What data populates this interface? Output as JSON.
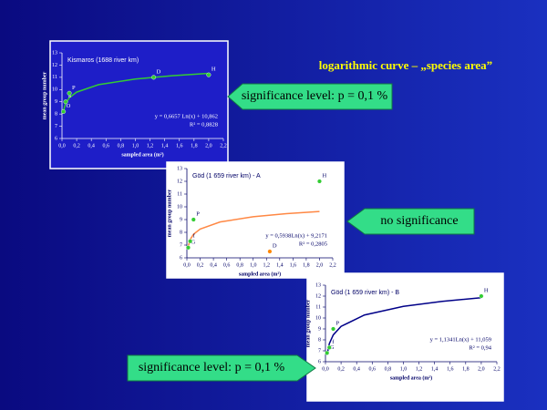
{
  "slide_title": "logarithmic curve – „species area”",
  "callouts": [
    "significance level: p = 0,1 %",
    "no significance",
    "significance level: p = 0,1 %"
  ],
  "chart_data": [
    {
      "type": "scatter",
      "title": "Kismaros (1688 river km)",
      "x_label": "sampled area (m²)",
      "y_label": "mean group number",
      "xlim": [
        0,
        2.2
      ],
      "xticks": [
        {
          "value": 0,
          "label": "0,0"
        },
        {
          "value": 0.2,
          "label": "0,2"
        },
        {
          "value": 0.4,
          "label": "0,4"
        },
        {
          "value": 0.6,
          "label": "0,6"
        },
        {
          "value": 0.8,
          "label": "0,8"
        },
        {
          "value": 1,
          "label": "1,0"
        },
        {
          "value": 1.2,
          "label": "1,2"
        },
        {
          "value": 1.4,
          "label": "1,4"
        },
        {
          "value": 1.6,
          "label": "1,6"
        },
        {
          "value": 1.8,
          "label": "1,8"
        },
        {
          "value": 2,
          "label": "2,0"
        },
        {
          "value": 2.2,
          "label": "2,2"
        }
      ],
      "ylim": [
        6,
        13
      ],
      "yticks": [
        6,
        7,
        8,
        9,
        10,
        11,
        12,
        13
      ],
      "background": "#1e1ec8",
      "text_color": "#ffffff",
      "points": {
        "x": [
          0.02,
          0.05,
          0.1,
          1.25,
          2.0
        ],
        "values": [
          8.2,
          9.0,
          9.7,
          11.0,
          11.2
        ],
        "labels": [
          "O",
          "a",
          "P",
          "D",
          "H"
        ],
        "colors": [
          "#33cc33",
          "#33cc33",
          "#33cc33",
          "#33cc33",
          "#33cc33"
        ]
      },
      "trendline": {
        "color": "#33cc33",
        "x": [
          0.02,
          0.05,
          0.1,
          0.2,
          0.5,
          1.0,
          1.5,
          2.0
        ],
        "values": [
          8.26,
          8.87,
          9.33,
          9.79,
          10.4,
          10.86,
          11.13,
          11.32
        ]
      },
      "equation": "y = 0,6657 Ln(x) + 10,862",
      "r_squared": "R² = 0,8828"
    },
    {
      "type": "scatter",
      "title": "Göd (1 659 river km) - A",
      "x_label": "sampled area (m²)",
      "y_label": "mean group number",
      "xlim": [
        0,
        2.2
      ],
      "xticks": [
        {
          "value": 0,
          "label": "0,0"
        },
        {
          "value": 0.2,
          "label": "0,2"
        },
        {
          "value": 0.4,
          "label": "0,4"
        },
        {
          "value": 0.6,
          "label": "0,6"
        },
        {
          "value": 0.8,
          "label": "0,8"
        },
        {
          "value": 1,
          "label": "1,0"
        },
        {
          "value": 1.2,
          "label": "1,2"
        },
        {
          "value": 1.4,
          "label": "1,4"
        },
        {
          "value": 1.6,
          "label": "1,6"
        },
        {
          "value": 1.8,
          "label": "1,8"
        },
        {
          "value": 2,
          "label": "2,0"
        },
        {
          "value": 2.2,
          "label": "2,2"
        }
      ],
      "ylim": [
        6,
        13
      ],
      "yticks": [
        6,
        7,
        8,
        9,
        10,
        11,
        12,
        13
      ],
      "background": "#ffffff",
      "text_color": "#000066",
      "points": {
        "x": [
          0.02,
          0.05,
          0.1,
          1.25,
          2.0
        ],
        "values": [
          6.8,
          7.3,
          9.0,
          6.5,
          12.0
        ],
        "labels": [
          "G",
          "f",
          "P",
          "D",
          "H"
        ],
        "colors": [
          "#33cc33",
          "#33cc33",
          "#33cc33",
          "#ff8800",
          "#33cc33"
        ]
      },
      "trendline": {
        "color": "#ff8844",
        "x": [
          0.02,
          0.05,
          0.1,
          0.2,
          0.5,
          1.0,
          1.5,
          2.0
        ],
        "values": [
          6.89,
          7.44,
          7.85,
          8.26,
          8.81,
          9.22,
          9.46,
          9.63
        ]
      },
      "equation": "y = 0,5938Ln(x) + 9,2171",
      "r_squared": "R² = 0,2805"
    },
    {
      "type": "scatter",
      "title": "Göd (1 659 river km) - B",
      "x_label": "sampled area (m²)",
      "y_label": "mean group number",
      "xlim": [
        0,
        2.2
      ],
      "xticks": [
        {
          "value": 0,
          "label": "0,0"
        },
        {
          "value": 0.2,
          "label": "0,2"
        },
        {
          "value": 0.4,
          "label": "0,4"
        },
        {
          "value": 0.6,
          "label": "0,6"
        },
        {
          "value": 0.8,
          "label": "0,8"
        },
        {
          "value": 1,
          "label": "1,0"
        },
        {
          "value": 1.2,
          "label": "1,2"
        },
        {
          "value": 1.4,
          "label": "1,4"
        },
        {
          "value": 1.6,
          "label": "1,6"
        },
        {
          "value": 1.8,
          "label": "1,8"
        },
        {
          "value": 2,
          "label": "2,0"
        },
        {
          "value": 2.2,
          "label": "2,2"
        }
      ],
      "ylim": [
        6,
        13
      ],
      "yticks": [
        6,
        7,
        8,
        9,
        10,
        11,
        12,
        13
      ],
      "background": "#ffffff",
      "text_color": "#000066",
      "points": {
        "x": [
          0.02,
          0.05,
          0.1,
          2.0
        ],
        "values": [
          6.8,
          7.3,
          9.0,
          12.0
        ],
        "labels": [
          "G",
          "f",
          "P",
          "H"
        ],
        "colors": [
          "#33cc33",
          "#33cc33",
          "#33cc33",
          "#33cc33"
        ]
      },
      "trendline": {
        "color": "#000088",
        "x": [
          0.02,
          0.05,
          0.1,
          0.2,
          0.5,
          1.0,
          1.5,
          2.0
        ],
        "values": [
          6.62,
          7.66,
          8.45,
          9.23,
          10.27,
          11.06,
          11.52,
          11.85
        ]
      },
      "equation": "y = 1,1341Ln(x) + 11,059",
      "r_squared": "R² = 0,94"
    }
  ]
}
